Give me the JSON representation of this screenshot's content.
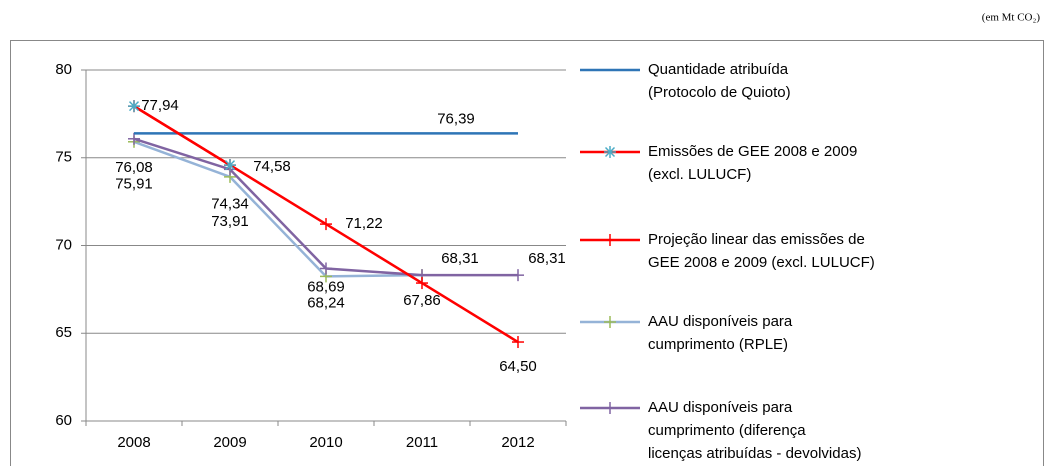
{
  "chart_data": {
    "type": "line",
    "unit_note": "(em Mt CO₂)",
    "categories": [
      "2008",
      "2009",
      "2010",
      "2011",
      "2012"
    ],
    "ylim": [
      60,
      80
    ],
    "yticks": [
      60,
      65,
      70,
      75,
      80
    ],
    "grid": true,
    "legend": "right",
    "series": [
      {
        "name": "Quantidade atribuída (Protocolo de Quioto)",
        "color": "#2e75b6",
        "marker": "none",
        "values": [
          76.39,
          76.39,
          76.39,
          76.39,
          76.39
        ],
        "value_labels": [
          null,
          null,
          null,
          "76,39",
          null
        ]
      },
      {
        "name": "Emissões de GEE 2008 e 2009 (excl. LULUCF)",
        "color": "#ff0000",
        "marker": "asterisk",
        "marker_color": "#4bacc6",
        "values": [
          77.94,
          74.58,
          null,
          null,
          null
        ],
        "value_labels": [
          "77,94",
          "74,58",
          null,
          null,
          null
        ]
      },
      {
        "name": "Projeção linear das emissões de GEE 2008 e 2009 (excl. LULUCF)",
        "color": "#ff0000",
        "marker": "plus",
        "marker_color": "#ff0000",
        "values": [
          77.94,
          74.58,
          71.22,
          67.86,
          64.5
        ],
        "value_labels": [
          null,
          null,
          "71,22",
          "67,86",
          "64,50"
        ]
      },
      {
        "name": "AAU disponíveis para cumprimento (RPLE)",
        "color": "#95b3d7",
        "marker": "plus",
        "marker_color": "#9bbb59",
        "values": [
          75.91,
          73.91,
          68.24,
          68.31,
          null
        ],
        "value_labels": [
          "75,91",
          "73,91",
          "68,24",
          null,
          null
        ]
      },
      {
        "name": "AAU disponíveis para cumprimento (diferença licenças atribuídas - devolvidas)",
        "color": "#8064a2",
        "marker": "plus",
        "marker_color": "#8064a2",
        "values": [
          76.08,
          74.34,
          68.69,
          68.31,
          68.31
        ],
        "value_labels": [
          "76,08",
          "74,34",
          "68,69",
          "68,31",
          "68,31"
        ]
      }
    ]
  }
}
